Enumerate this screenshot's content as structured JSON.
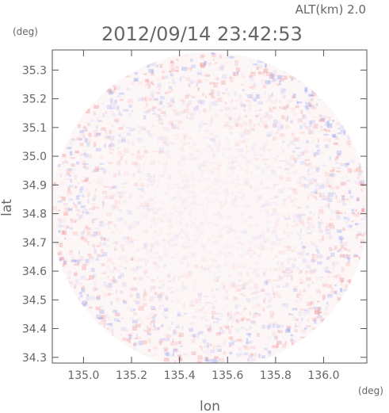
{
  "header": {
    "alt_label": "ALT(km) 2.0",
    "timestamp": "2012/09/14 23:42:53",
    "y_unit": "(deg)",
    "x_unit": "(deg)"
  },
  "colors": {
    "positive": "#f08c8c",
    "negative": "#8c9cf0",
    "frame": "#555555",
    "text": "#666666"
  },
  "chart_data": {
    "type": "heatmap",
    "title": "",
    "xlabel": "lon",
    "ylabel": "lat",
    "xlim": [
      134.87,
      136.18
    ],
    "ylim": [
      34.28,
      35.37
    ],
    "x_ticks": [
      {
        "value": 135.0,
        "label": "135.0"
      },
      {
        "value": 135.2,
        "label": "135.2"
      },
      {
        "value": 135.4,
        "label": "135.4"
      },
      {
        "value": 135.6,
        "label": "135.6"
      },
      {
        "value": 135.8,
        "label": "135.8"
      },
      {
        "value": 136.0,
        "label": "136.0"
      }
    ],
    "y_ticks": [
      {
        "value": 34.3,
        "label": "34.3"
      },
      {
        "value": 34.4,
        "label": "34.4"
      },
      {
        "value": 34.5,
        "label": "34.5"
      },
      {
        "value": 34.6,
        "label": "34.6"
      },
      {
        "value": 34.7,
        "label": "34.7"
      },
      {
        "value": 34.8,
        "label": "34.8"
      },
      {
        "value": 34.9,
        "label": "34.9"
      },
      {
        "value": 35.0,
        "label": "35.0"
      },
      {
        "value": 35.1,
        "label": "35.1"
      },
      {
        "value": 35.2,
        "label": "35.2"
      },
      {
        "value": 35.3,
        "label": "35.3"
      }
    ],
    "coverage": {
      "center_lon": 135.525,
      "center_lat": 34.81,
      "radius_deg": 0.66
    }
  }
}
